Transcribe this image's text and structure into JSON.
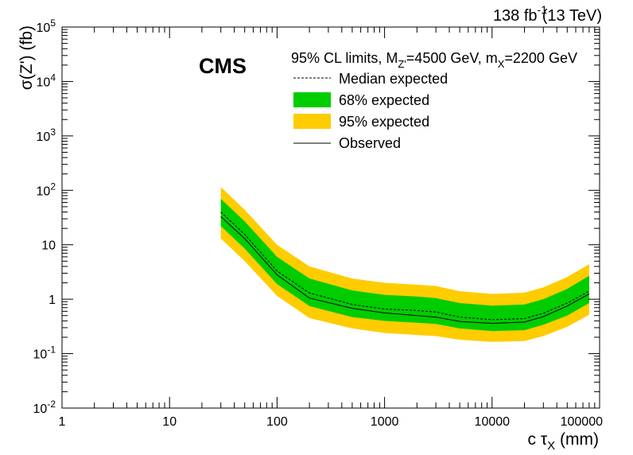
{
  "header": {
    "lumi_value": "138 fb",
    "lumi_exp": "-1",
    "energy": "(13 TeV)"
  },
  "experiment": "CMS",
  "legend": {
    "title_prefix": "95% CL limits, M",
    "title_sub1": "Z'",
    "title_mid": "=4500 GeV, m",
    "title_sub2": "X",
    "title_suffix": "=2200 GeV",
    "items": [
      {
        "label": "Median expected",
        "style": "dashed"
      },
      {
        "label": "68% expected",
        "style": "green-band"
      },
      {
        "label": "95% expected",
        "style": "yellow-band"
      },
      {
        "label": "Observed",
        "style": "solid"
      }
    ]
  },
  "colors": {
    "band68": "#00cc00",
    "band95": "#ffcc00",
    "line": "#000000"
  },
  "axes": {
    "ylabel_main": "σ(Z') (fb)",
    "xlabel_prefix": "c τ",
    "xlabel_sub": "X",
    "xlabel_suffix": "(mm)",
    "x_ticks": [
      "1",
      "10",
      "100",
      "1000",
      "10000",
      "100000"
    ],
    "y_ticks": [
      {
        "base": "10",
        "exp": "-2"
      },
      {
        "base": "10",
        "exp": "-1"
      },
      {
        "base": "1",
        "exp": ""
      },
      {
        "base": "10",
        "exp": ""
      },
      {
        "base": "10",
        "exp": "2"
      },
      {
        "base": "10",
        "exp": "3"
      },
      {
        "base": "10",
        "exp": "4"
      },
      {
        "base": "10",
        "exp": "5"
      }
    ]
  },
  "chart_data": {
    "type": "line",
    "xscale": "log",
    "yscale": "log",
    "xlim": [
      1,
      100000
    ],
    "ylim": [
      0.01,
      100000
    ],
    "x": [
      30,
      50,
      100,
      200,
      500,
      1000,
      2000,
      3000,
      5000,
      10000,
      20000,
      30000,
      50000,
      80000
    ],
    "series": [
      {
        "name": "Observed",
        "values": [
          33,
          13,
          2.8,
          1.05,
          0.68,
          0.56,
          0.5,
          0.47,
          0.39,
          0.36,
          0.38,
          0.48,
          0.75,
          1.25
        ]
      },
      {
        "name": "Median expected",
        "values": [
          40,
          15.5,
          3.3,
          1.3,
          0.8,
          0.66,
          0.62,
          0.58,
          0.47,
          0.42,
          0.44,
          0.55,
          0.85,
          1.4
        ]
      },
      {
        "name": "68% expected",
        "lower": [
          22,
          8.5,
          1.9,
          0.75,
          0.47,
          0.4,
          0.37,
          0.35,
          0.29,
          0.26,
          0.27,
          0.34,
          0.5,
          0.85
        ],
        "upper": [
          70,
          27,
          6.0,
          2.4,
          1.45,
          1.2,
          1.12,
          1.05,
          0.85,
          0.76,
          0.8,
          1.0,
          1.55,
          2.7
        ]
      },
      {
        "name": "95% expected",
        "lower": [
          13,
          5.0,
          1.15,
          0.45,
          0.29,
          0.24,
          0.22,
          0.21,
          0.18,
          0.165,
          0.17,
          0.21,
          0.31,
          0.52
        ],
        "upper": [
          115,
          44,
          10,
          4.0,
          2.4,
          2.0,
          1.85,
          1.75,
          1.4,
          1.25,
          1.32,
          1.65,
          2.55,
          4.4
        ]
      }
    ]
  }
}
